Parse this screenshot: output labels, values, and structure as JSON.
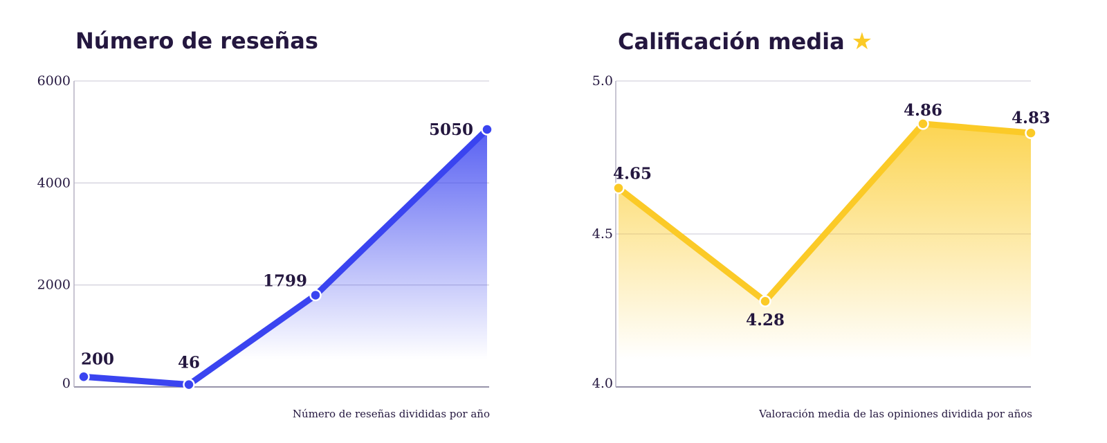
{
  "chart_data": [
    {
      "type": "area",
      "title": "Número de reseñas",
      "caption": "Número de reseñas divididas por año",
      "yticks": [
        "6000",
        "4000",
        "2000",
        "0"
      ],
      "ylim": [
        0,
        6000
      ],
      "values": [
        200,
        46,
        1799,
        5050
      ],
      "grid": true,
      "color": "#3a44f0"
    },
    {
      "type": "area",
      "title": "Calificación media",
      "title_icon": "star-icon",
      "caption": "Valoración media de las opiniones dividida por años",
      "yticks": [
        "5.0",
        "4.5",
        "4.0"
      ],
      "ylim": [
        4.0,
        5.0
      ],
      "values": [
        4.65,
        4.28,
        4.86,
        4.83
      ],
      "grid": true,
      "color": "#fbca27"
    }
  ]
}
